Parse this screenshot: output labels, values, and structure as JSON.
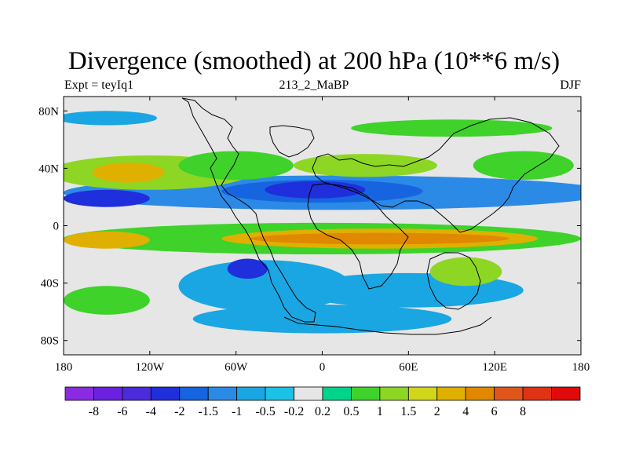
{
  "chart_data": {
    "type": "heatmap",
    "title": "Divergence (smoothed) at 200 hPa (10**6 m/s)",
    "subtitle_left": "Expt = teyIq1",
    "subtitle_center": "213_2_MaBP",
    "subtitle_right": "DJF",
    "xlim": [
      -180,
      180
    ],
    "ylim": [
      -90,
      90
    ],
    "x_ticks": [
      -180,
      -120,
      -60,
      0,
      60,
      120,
      180
    ],
    "x_tick_labels": [
      "180",
      "120W",
      "60W",
      "0",
      "60E",
      "120E",
      "180"
    ],
    "y_ticks": [
      80,
      40,
      0,
      -40,
      -80
    ],
    "y_tick_labels": [
      "80N",
      "40N",
      "0",
      "40S",
      "80S"
    ],
    "colorbar": {
      "colors": [
        "#8a2be2",
        "#6a22e0",
        "#4b2bdc",
        "#1f2fdc",
        "#1764e0",
        "#2b8ae6",
        "#1aa6e2",
        "#1cc2e6",
        "#e6e6e6",
        "#00d48a",
        "#3ed22a",
        "#8ed624",
        "#d2d61a",
        "#e0b000",
        "#e08800",
        "#e0561a",
        "#e03214",
        "#e00a0a"
      ],
      "labels": [
        "-8",
        "-6",
        "-4",
        "-2",
        "-1.5",
        "-1",
        "-0.5",
        "-0.2",
        "0.2",
        "0.5",
        "1",
        "1.5",
        "2",
        "4",
        "6",
        "8"
      ]
    },
    "field_blobs": [
      {
        "lon": 0,
        "lat": -9,
        "rlon": 180,
        "rlat": 11,
        "level": "0.5"
      },
      {
        "lon": 40,
        "lat": -9,
        "rlon": 110,
        "rlat": 7,
        "level": "2"
      },
      {
        "lon": 40,
        "lat": -9,
        "rlon": 90,
        "rlat": 4,
        "level": "4"
      },
      {
        "lon": -150,
        "lat": -10,
        "rlon": 30,
        "rlat": 6,
        "level": "2"
      },
      {
        "lon": 10,
        "lat": 23,
        "rlon": 190,
        "rlat": 12,
        "level": "-1"
      },
      {
        "lon": 0,
        "lat": 24,
        "rlon": 70,
        "rlat": 8,
        "level": "-1.5"
      },
      {
        "lon": -5,
        "lat": 25,
        "rlon": 35,
        "rlat": 6,
        "level": "-2"
      },
      {
        "lon": -150,
        "lat": 19,
        "rlon": 30,
        "rlat": 6,
        "level": "-2"
      },
      {
        "lon": -120,
        "lat": 37,
        "rlon": 70,
        "rlat": 12,
        "level": "1"
      },
      {
        "lon": -135,
        "lat": 37,
        "rlon": 25,
        "rlat": 7,
        "level": "2"
      },
      {
        "lon": -60,
        "lat": 42,
        "rlon": 40,
        "rlat": 10,
        "level": "0.5"
      },
      {
        "lon": 30,
        "lat": 42,
        "rlon": 50,
        "rlat": 8,
        "level": "1"
      },
      {
        "lon": 140,
        "lat": 42,
        "rlon": 35,
        "rlat": 10,
        "level": "0.5"
      },
      {
        "lon": -40,
        "lat": -42,
        "rlon": 60,
        "rlat": 18,
        "level": "-0.5"
      },
      {
        "lon": -52,
        "lat": -30,
        "rlon": 14,
        "rlat": 7,
        "level": "-2"
      },
      {
        "lon": 60,
        "lat": -45,
        "rlon": 80,
        "rlat": 12,
        "level": "-0.5"
      },
      {
        "lon": 0,
        "lat": -65,
        "rlon": 90,
        "rlat": 10,
        "level": "-0.5"
      },
      {
        "lon": -150,
        "lat": -52,
        "rlon": 30,
        "rlat": 10,
        "level": "0.5"
      },
      {
        "lon": 100,
        "lat": -32,
        "rlon": 25,
        "rlat": 10,
        "level": "1"
      },
      {
        "lon": 90,
        "lat": 68,
        "rlon": 70,
        "rlat": 6,
        "level": "0.5"
      },
      {
        "lon": -150,
        "lat": 75,
        "rlon": 35,
        "rlat": 5,
        "level": "-0.5"
      }
    ]
  }
}
